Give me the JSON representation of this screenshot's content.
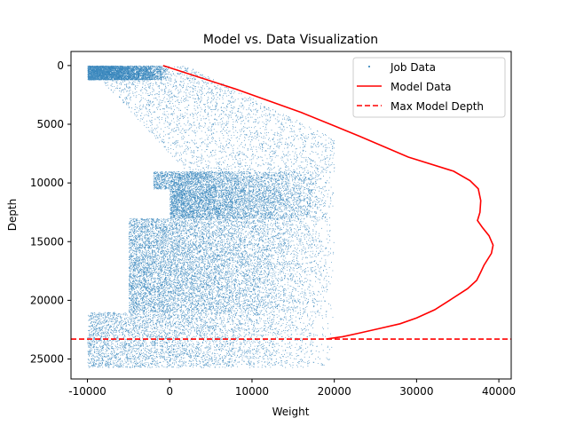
{
  "chart_data": {
    "type": "scatter",
    "title": "Model vs. Data Visualization",
    "xlabel": "Weight",
    "ylabel": "Depth",
    "xlim": [
      -12000,
      41500
    ],
    "ylim": [
      26700,
      -1200
    ],
    "y_inverted": true,
    "xticks": [
      -10000,
      0,
      10000,
      20000,
      30000,
      40000
    ],
    "yticks": [
      0,
      5000,
      10000,
      15000,
      20000,
      25000
    ],
    "grid": false,
    "legend_position": "top-right",
    "colors": {
      "job_data": "#1f77b4",
      "model": "#ff0000",
      "max_depth": "#ff0000"
    },
    "series": [
      {
        "name": "Job Data",
        "kind": "scatter",
        "clusters": [
          {
            "x_range": [
              -10000,
              0
            ],
            "y_range": [
              0,
              1200
            ],
            "density": "high"
          },
          {
            "x_range": [
              -10000,
              20000
            ],
            "y_range": [
              0,
              9000
            ],
            "density": "medium",
            "trend": "diagonal"
          },
          {
            "x_range": [
              -2000,
              20000
            ],
            "y_range": [
              9000,
              10500
            ],
            "density": "medium"
          },
          {
            "x_range": [
              0,
              20000
            ],
            "y_range": [
              10500,
              13000
            ],
            "density": "high"
          },
          {
            "x_range": [
              -5000,
              20000
            ],
            "y_range": [
              13000,
              21000
            ],
            "density": "very-high"
          },
          {
            "x_range": [
              -10000,
              20000
            ],
            "y_range": [
              21000,
              25700
            ],
            "density": "high"
          }
        ]
      },
      {
        "name": "Model Data",
        "kind": "line",
        "points": [
          [
            -800,
            0
          ],
          [
            8000,
            2000
          ],
          [
            16000,
            4000
          ],
          [
            23000,
            6000
          ],
          [
            29000,
            7800
          ],
          [
            34500,
            9000
          ],
          [
            36500,
            9800
          ],
          [
            37500,
            10500
          ],
          [
            37800,
            11500
          ],
          [
            37700,
            12500
          ],
          [
            37400,
            13200
          ],
          [
            38000,
            13800
          ],
          [
            38800,
            14500
          ],
          [
            39300,
            15300
          ],
          [
            39100,
            16000
          ],
          [
            38200,
            17000
          ],
          [
            37800,
            17600
          ],
          [
            37300,
            18300
          ],
          [
            36200,
            19000
          ],
          [
            34000,
            20000
          ],
          [
            32200,
            20800
          ],
          [
            30000,
            21500
          ],
          [
            28000,
            22000
          ],
          [
            25500,
            22400
          ],
          [
            23000,
            22800
          ],
          [
            21000,
            23100
          ],
          [
            19000,
            23300
          ]
        ]
      },
      {
        "name": "Max Model Depth",
        "kind": "hline",
        "y": 23300
      }
    ]
  }
}
